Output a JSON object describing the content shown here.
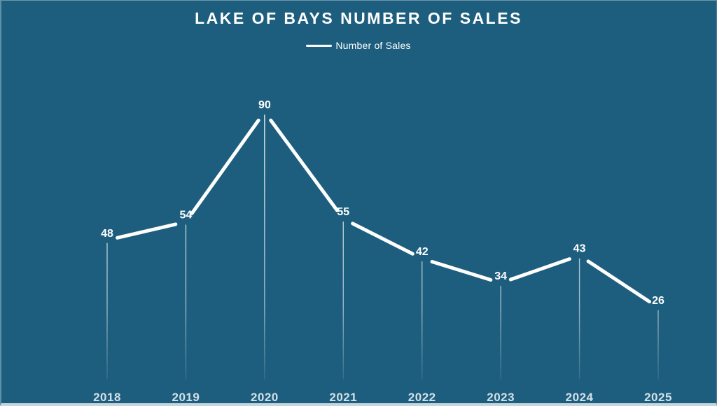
{
  "chart": {
    "title": "LAKE OF BAYS NUMBER OF SALES",
    "legend_label": "Number of Sales"
  },
  "chart_data": {
    "type": "line",
    "title": "LAKE OF BAYS NUMBER OF SALES",
    "categories": [
      "2018",
      "2019",
      "2020",
      "2021",
      "2022",
      "2023",
      "2024",
      "2025"
    ],
    "series": [
      {
        "name": "Number of Sales",
        "values": [
          48,
          54,
          90,
          55,
          42,
          34,
          43,
          26
        ]
      }
    ],
    "xlabel": "",
    "ylabel": "",
    "ylim": [
      0,
      100
    ],
    "legend_position": "top-center",
    "grid": false,
    "data_labels": true,
    "drop_lines": true,
    "style": {
      "background_color": "#1D5E7E",
      "line_color": "#FFFFFF",
      "data_label_color": "#FFFFFF",
      "axis_label_color": "#D2E0E8",
      "drop_line_color": "#FFFFFF"
    }
  }
}
